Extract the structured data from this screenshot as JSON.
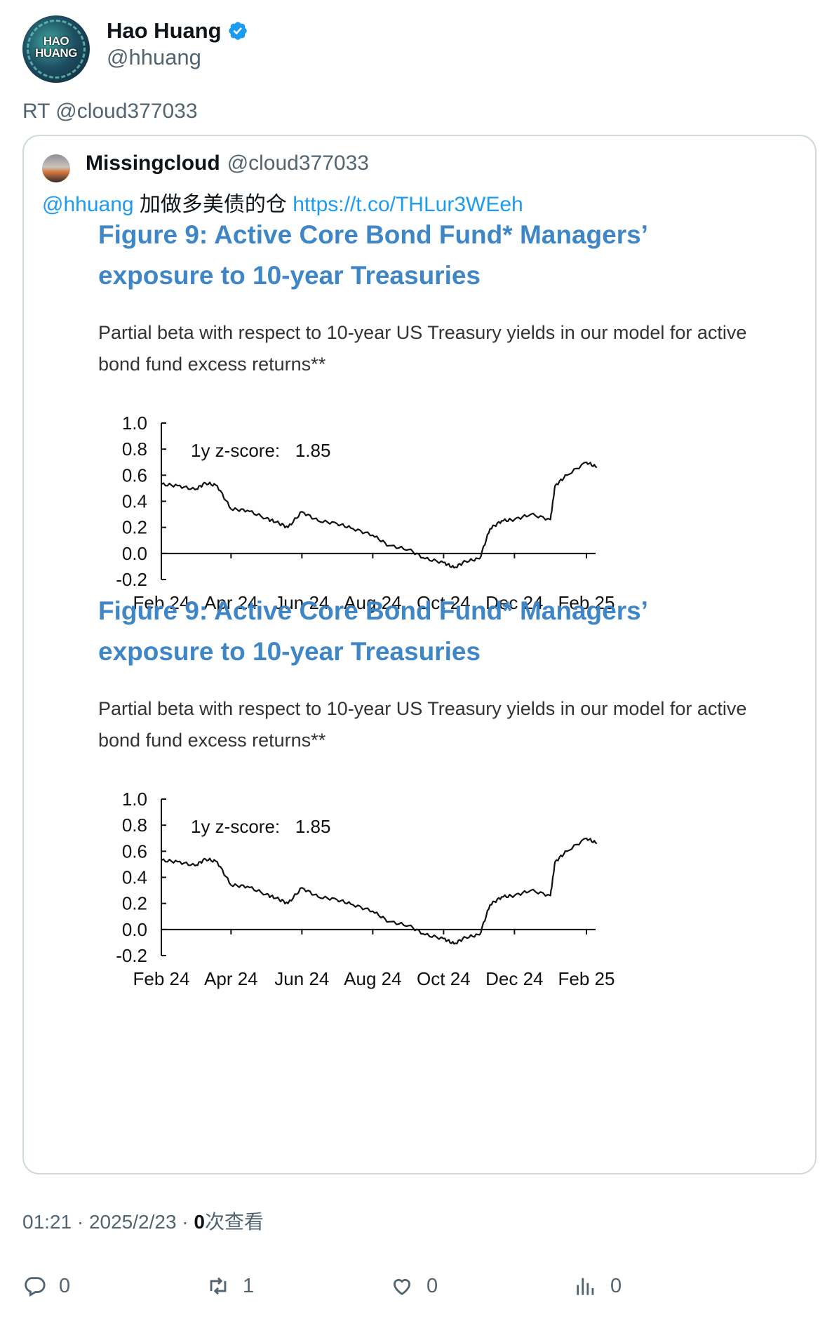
{
  "author": {
    "display_name": "Hao Huang",
    "handle": "@hhuang",
    "avatar_text_line1": "HAO",
    "avatar_text_line2": "HUANG"
  },
  "retweet_text": "RT @cloud377033",
  "quoted": {
    "display_name": "Missingcloud",
    "handle": "@cloud377033",
    "mention": "@hhuang",
    "text": " 加做多美债的仓 ",
    "link": "https://t.co/THLur3WEeh"
  },
  "figures": [
    {
      "title": "Figure 9: Active Core Bond Fund* Managers’ exposure to 10-year Treasuries",
      "subtitle": "Partial beta with respect to 10-year US Treasury yields in our model for active bond fund excess returns**",
      "annotation": "1y z-score:   1.85"
    },
    {
      "title": "Figure 9: Active Core Bond Fund* Managers’ exposure to 10-year Treasuries",
      "subtitle": "Partial beta with respect to 10-year US Treasury yields in our model for active bond fund excess returns**",
      "annotation": "1y z-score:   1.85"
    }
  ],
  "chart_data": [
    {
      "type": "line",
      "title": "Figure 9: Active Core Bond Fund* Managers’ exposure to 10-year Treasuries",
      "subtitle": "Partial beta with respect to 10-year US Treasury yields in our model for active bond fund excess returns**",
      "annotation": "1y z-score:   1.85",
      "xlabel": "",
      "ylabel": "",
      "x_ticks": [
        "Feb 24",
        "Apr 24",
        "Jun 24",
        "Aug 24",
        "Oct 24",
        "Dec 24",
        "Feb 25"
      ],
      "y_ticks": [
        "1.0",
        "0.8",
        "0.6",
        "0.4",
        "0.2",
        "0.0",
        "-0.2"
      ],
      "ylim": [
        -0.2,
        1.0
      ],
      "grid": false,
      "series": [
        {
          "x": [
            "2024-02-01",
            "2024-02-15",
            "2024-03-01",
            "2024-03-10",
            "2024-03-20",
            "2024-04-01",
            "2024-04-15",
            "2024-05-01",
            "2024-05-10",
            "2024-05-20",
            "2024-06-01",
            "2024-06-15",
            "2024-07-01",
            "2024-07-15",
            "2024-08-01",
            "2024-08-15",
            "2024-09-01",
            "2024-09-15",
            "2024-10-01",
            "2024-10-10",
            "2024-10-20",
            "2024-11-01",
            "2024-11-10",
            "2024-11-20",
            "2024-12-01",
            "2024-12-15",
            "2025-01-01",
            "2025-01-05",
            "2025-01-15",
            "2025-02-01",
            "2025-02-10"
          ],
          "y": [
            0.53,
            0.52,
            0.49,
            0.54,
            0.52,
            0.34,
            0.33,
            0.27,
            0.24,
            0.2,
            0.32,
            0.25,
            0.23,
            0.19,
            0.14,
            0.06,
            0.03,
            -0.04,
            -0.07,
            -0.11,
            -0.06,
            -0.04,
            0.19,
            0.25,
            0.26,
            0.3,
            0.26,
            0.52,
            0.6,
            0.7,
            0.66
          ]
        }
      ]
    },
    {
      "type": "line",
      "title": "Figure 9: Active Core Bond Fund* Managers’ exposure to 10-year Treasuries",
      "subtitle": "Partial beta with respect to 10-year US Treasury yields in our model for active bond fund excess returns**",
      "annotation": "1y z-score:   1.85",
      "xlabel": "",
      "ylabel": "",
      "x_ticks": [
        "Feb 24",
        "Apr 24",
        "Jun 24",
        "Aug 24",
        "Oct 24",
        "Dec 24",
        "Feb 25"
      ],
      "y_ticks": [
        "1.0",
        "0.8",
        "0.6",
        "0.4",
        "0.2",
        "0.0",
        "-0.2"
      ],
      "ylim": [
        -0.2,
        1.0
      ],
      "grid": false,
      "series": [
        {
          "x": [
            "2024-02-01",
            "2024-02-15",
            "2024-03-01",
            "2024-03-10",
            "2024-03-20",
            "2024-04-01",
            "2024-04-15",
            "2024-05-01",
            "2024-05-10",
            "2024-05-20",
            "2024-06-01",
            "2024-06-15",
            "2024-07-01",
            "2024-07-15",
            "2024-08-01",
            "2024-08-15",
            "2024-09-01",
            "2024-09-15",
            "2024-10-01",
            "2024-10-10",
            "2024-10-20",
            "2024-11-01",
            "2024-11-10",
            "2024-11-20",
            "2024-12-01",
            "2024-12-15",
            "2025-01-01",
            "2025-01-05",
            "2025-01-15",
            "2025-02-01",
            "2025-02-10"
          ],
          "y": [
            0.53,
            0.52,
            0.49,
            0.54,
            0.52,
            0.34,
            0.33,
            0.27,
            0.24,
            0.2,
            0.32,
            0.25,
            0.23,
            0.19,
            0.14,
            0.06,
            0.03,
            -0.04,
            -0.07,
            -0.11,
            -0.06,
            -0.04,
            0.19,
            0.25,
            0.26,
            0.3,
            0.26,
            0.52,
            0.6,
            0.7,
            0.66
          ]
        }
      ]
    }
  ],
  "meta": {
    "time": "01:21 · 2025/2/23 · ",
    "views_count": "0",
    "views_label": "次查看"
  },
  "actions": {
    "reply_count": "0",
    "retweet_count": "1",
    "like_count": "0",
    "views_count": "0"
  },
  "colors": {
    "link": "#1d9bf0",
    "figure_title": "#3f86c6",
    "verified": "#1d9bf0",
    "muted": "#536471"
  }
}
